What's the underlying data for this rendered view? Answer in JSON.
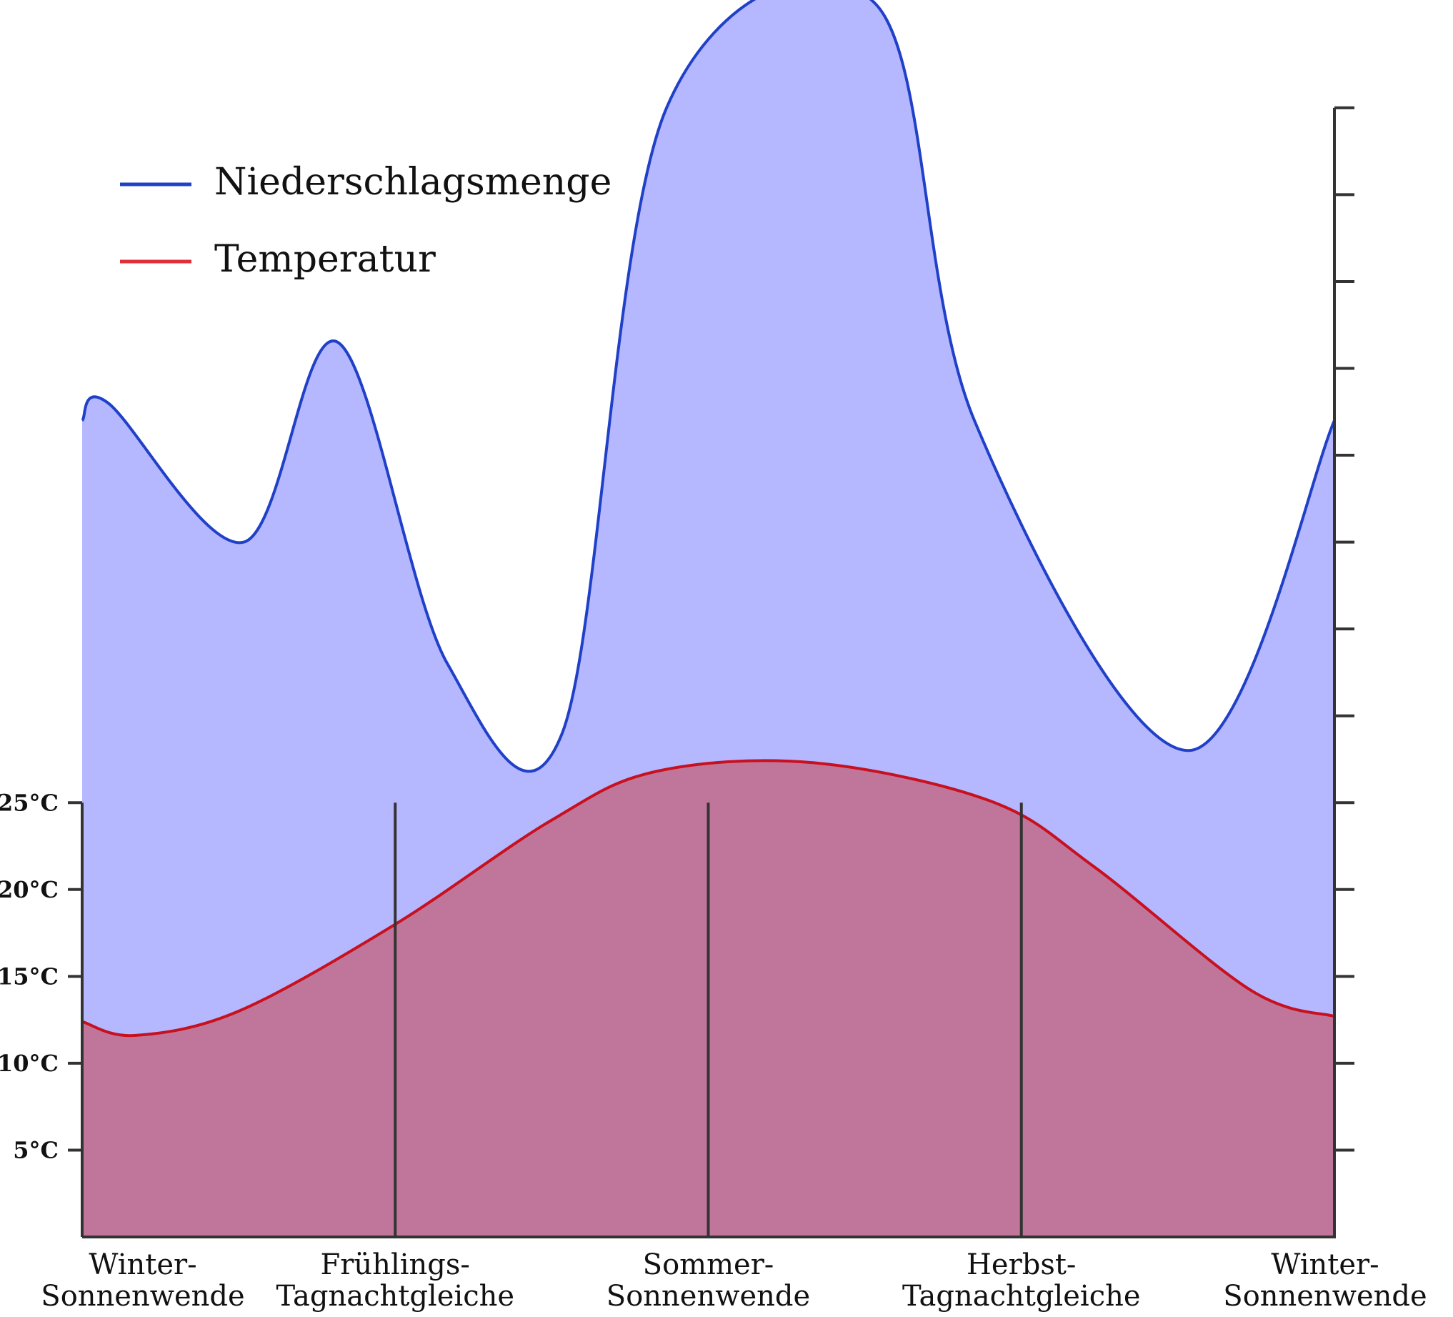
{
  "chart_data": {
    "type": "area",
    "title": "",
    "xlabel": "",
    "ylabel": "",
    "x_range": [
      0,
      12
    ],
    "categories": [
      {
        "x": 0,
        "line1": "Winter-",
        "line2": "Sonnenwende"
      },
      {
        "x": 3,
        "line1": "Frühlings-",
        "line2": "Tagnachtgleiche"
      },
      {
        "x": 6,
        "line1": "Sommer-",
        "line2": "Sonnenwende"
      },
      {
        "x": 9,
        "line1": "Herbst-",
        "line2": "Tagnachtgleiche"
      },
      {
        "x": 12,
        "line1": "Winter-",
        "line2": "Sonnenwende"
      }
    ],
    "temperature_axis": {
      "ticks": [
        {
          "value": 5,
          "label": "5°C"
        },
        {
          "value": 10,
          "label": "10°C"
        },
        {
          "value": 15,
          "label": "15°C"
        },
        {
          "value": 20,
          "label": "20°C"
        },
        {
          "value": 25,
          "label": "25°C"
        }
      ],
      "range": [
        0,
        71
      ]
    },
    "right_axis_ticks": [
      5,
      10,
      15,
      20,
      25,
      30,
      35,
      40,
      45,
      50,
      55,
      60,
      65
    ],
    "legend": {
      "position": "top-left",
      "entries": [
        {
          "name": "Niederschlagsmenge",
          "color": "#2040c8"
        },
        {
          "name": "Temperatur",
          "color": "#e0303a"
        }
      ]
    },
    "series": [
      {
        "name": "Niederschlagsmenge",
        "color": "#2040c8",
        "fill": "#b5b8ff",
        "points": [
          [
            0,
            47
          ],
          [
            0.25,
            48
          ],
          [
            1.55,
            40
          ],
          [
            2.45,
            51.5
          ],
          [
            3.5,
            33
          ],
          [
            4.6,
            29
          ],
          [
            5.6,
            65
          ],
          [
            7.6,
            71
          ],
          [
            8.55,
            47
          ],
          [
            10.6,
            28
          ],
          [
            12,
            47
          ]
        ]
      },
      {
        "name": "Temperatur",
        "color": "#c8101e",
        "fill": "#c0769a",
        "points": [
          [
            0,
            12.4
          ],
          [
            0.5,
            11.6
          ],
          [
            1.5,
            13
          ],
          [
            3,
            18
          ],
          [
            4.5,
            24
          ],
          [
            5.5,
            26.8
          ],
          [
            7,
            27.3
          ],
          [
            8.7,
            25.1
          ],
          [
            9.7,
            21.3
          ],
          [
            11.2,
            14.2
          ],
          [
            12,
            12.7
          ]
        ]
      }
    ]
  }
}
